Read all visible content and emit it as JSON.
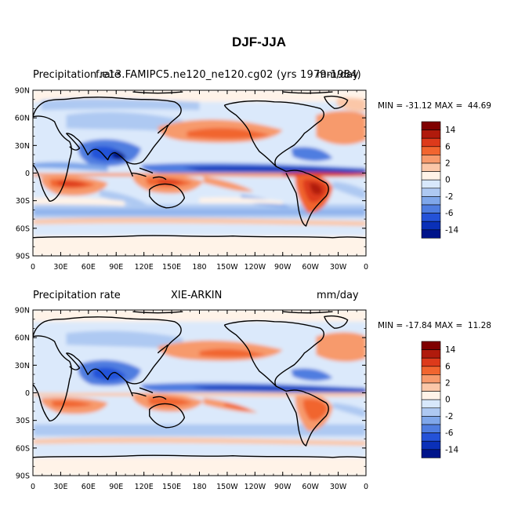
{
  "page": {
    "title": "DJF-JJA"
  },
  "axes": {
    "lat_labels": [
      "90N",
      "60N",
      "30N",
      "0",
      "30S",
      "60S",
      "90S"
    ],
    "lon_labels": [
      "0",
      "30E",
      "60E",
      "90E",
      "120E",
      "150E",
      "180",
      "150W",
      "120W",
      "90W",
      "60W",
      "30W",
      "0"
    ]
  },
  "colorbar": {
    "labels": [
      "14",
      "6",
      "2",
      "0",
      "-2",
      "-6",
      "-14"
    ],
    "colors": [
      "#7f0000",
      "#b01a0c",
      "#dd3a1b",
      "#f1652f",
      "#f79a6c",
      "#fbc7a8",
      "#fff3e8",
      "#d8e8fb",
      "#aec9f2",
      "#7fa7ea",
      "#4f7de0",
      "#2452d8",
      "#0a30b8",
      "#00148a"
    ]
  },
  "panels": [
    {
      "left_label": "Precipitation rate",
      "center_label": "f.e13.FAMIPC5.ne120_ne120.cg02 (yrs 1979-1984)",
      "right_label": "mm/day",
      "min_max": "MIN = -31.12 MAX =  44.69"
    },
    {
      "left_label": "Precipitation rate",
      "center_label": "XIE-ARKIN",
      "right_label": "mm/day",
      "min_max": "MIN = -17.84 MAX =  11.28"
    }
  ]
}
